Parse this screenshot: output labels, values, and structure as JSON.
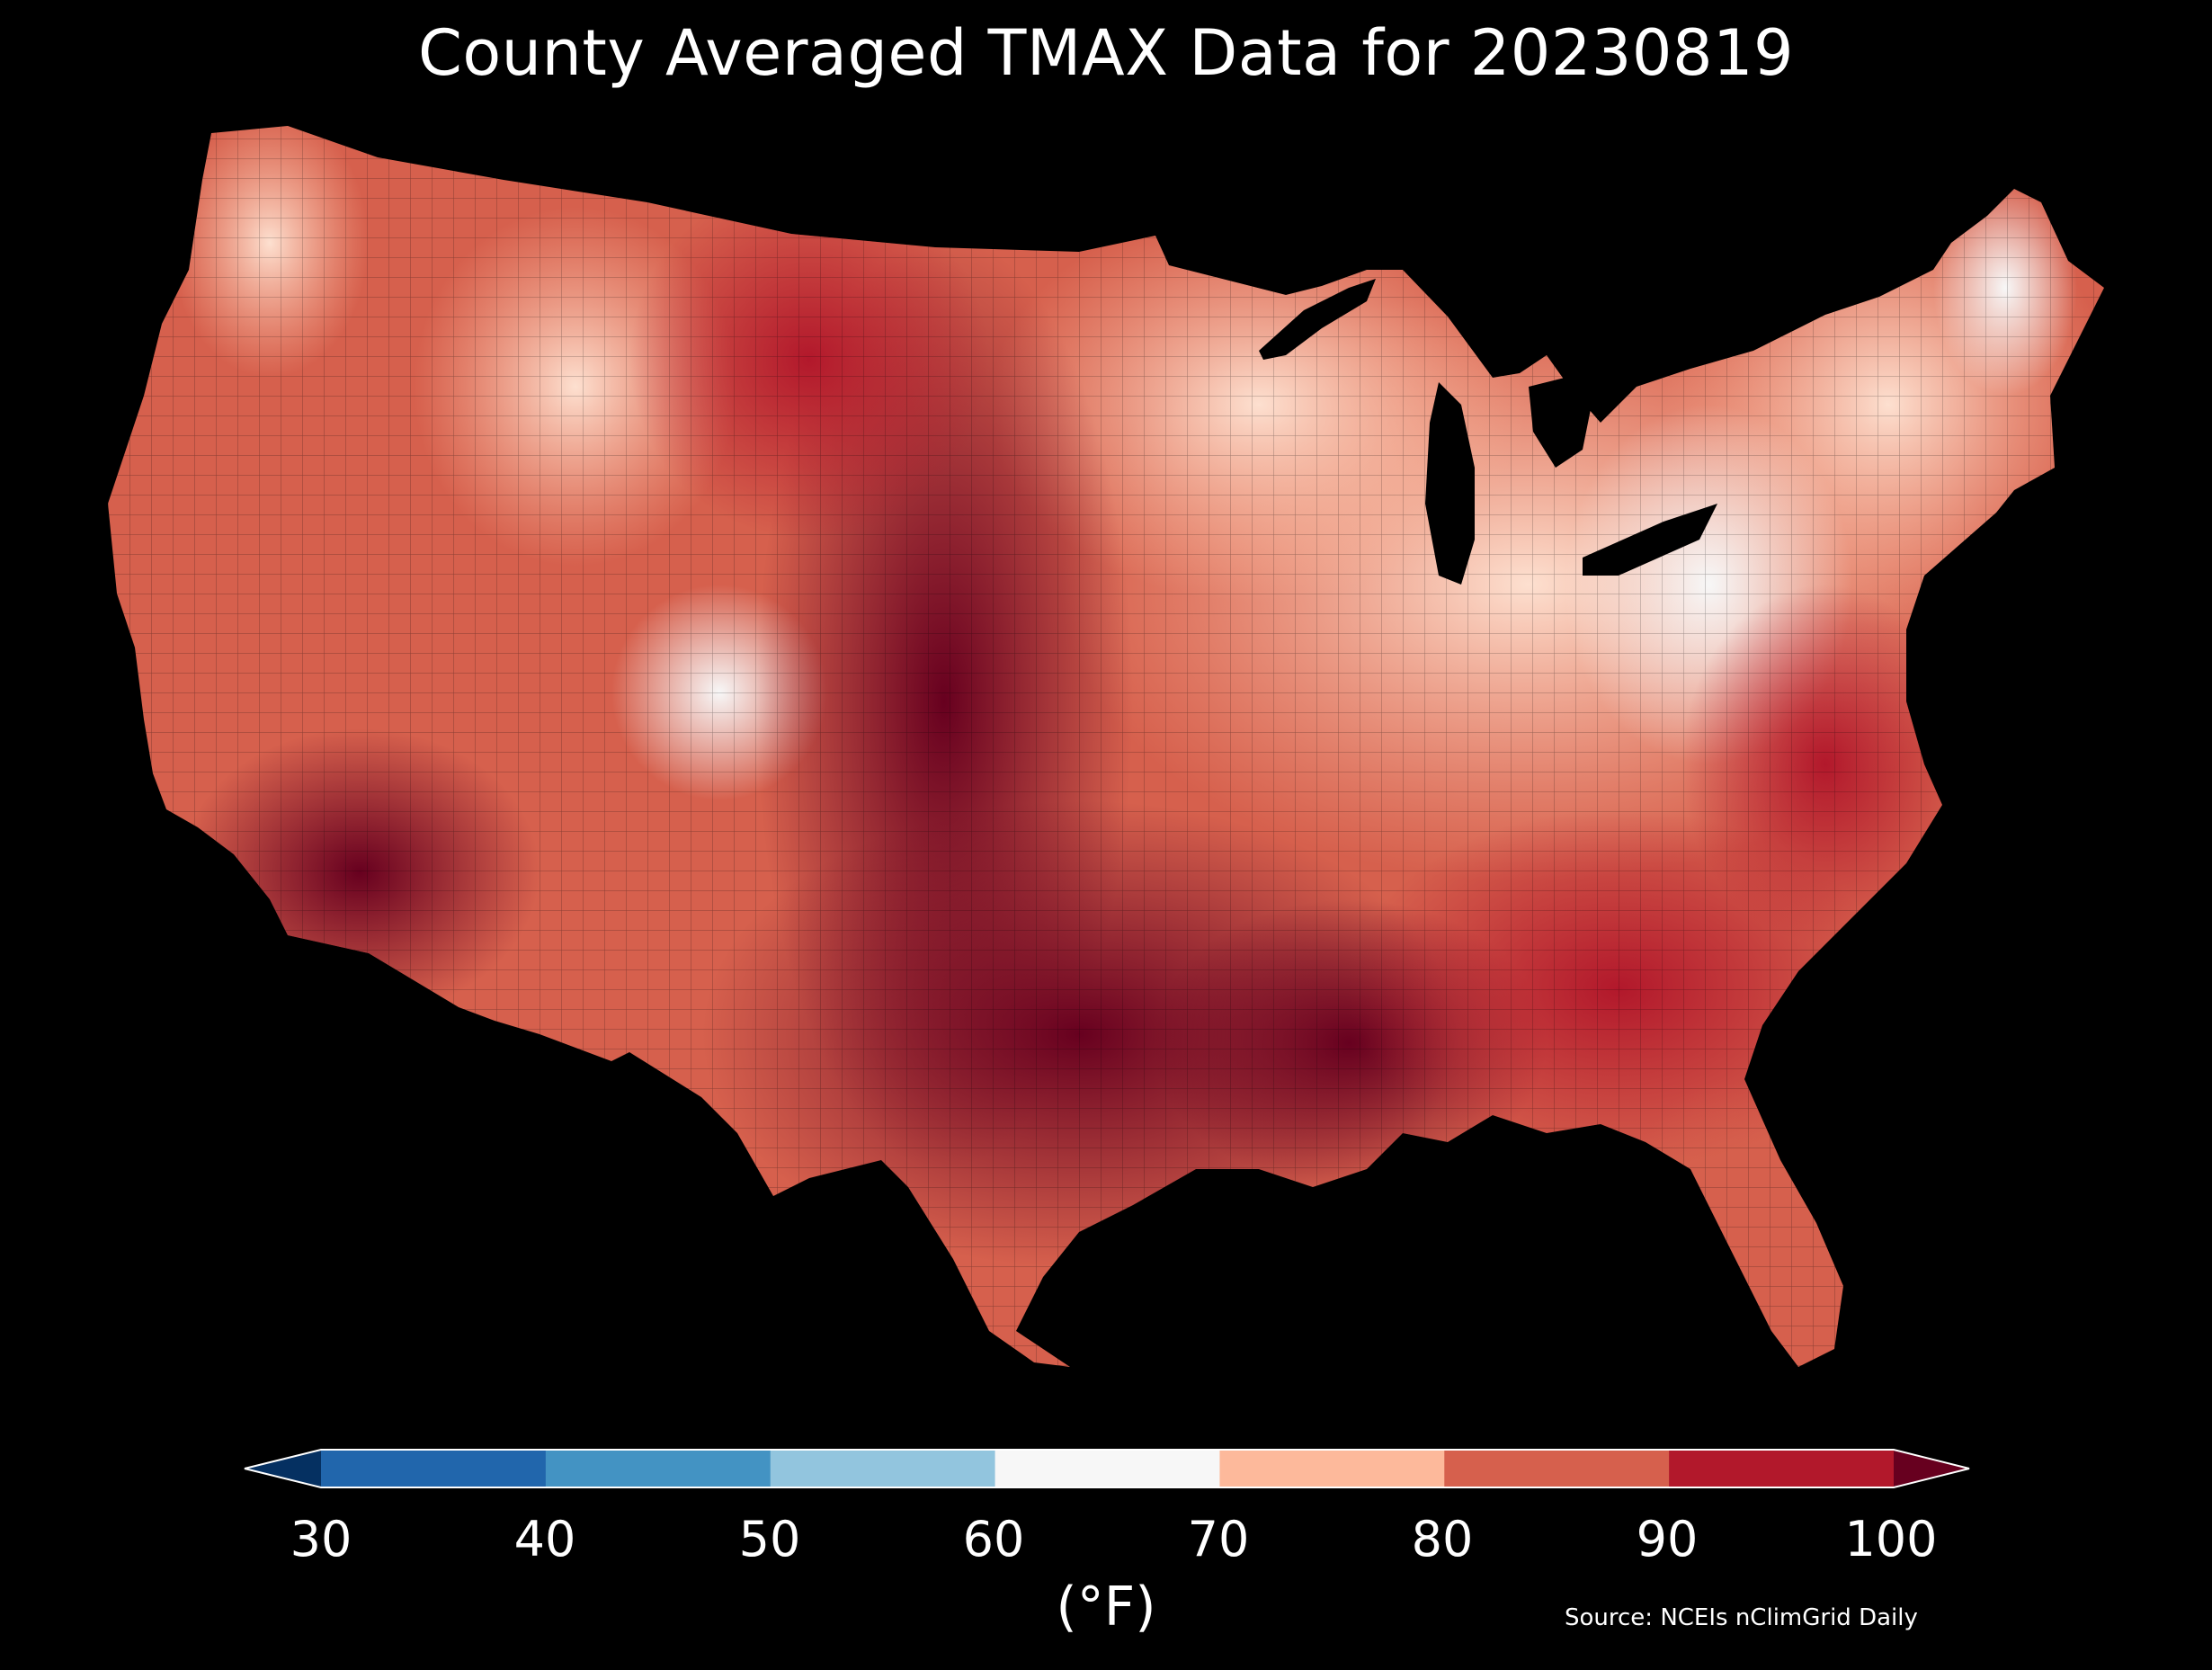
{
  "title": "County Averaged TMAX Data for 20230819",
  "unit_label": "(°F)",
  "source": "Source: NCEIs nClimGrid Daily",
  "colorbar": {
    "ticks": [
      "30",
      "40",
      "50",
      "60",
      "70",
      "80",
      "90",
      "100"
    ],
    "colors": [
      "#053061",
      "#2166ac",
      "#4393c3",
      "#92c5de",
      "#f7f7f7",
      "#fdb99b",
      "#d6604d",
      "#b2182b",
      "#67001f"
    ]
  },
  "legend_position": "bottom",
  "map_colors": {
    "hot": "#67001f",
    "warm": "#b2182b",
    "mild": "#d6604d",
    "cool": "#fdb99b",
    "neutral": "#f7f7f7",
    "background": "#000000"
  }
}
